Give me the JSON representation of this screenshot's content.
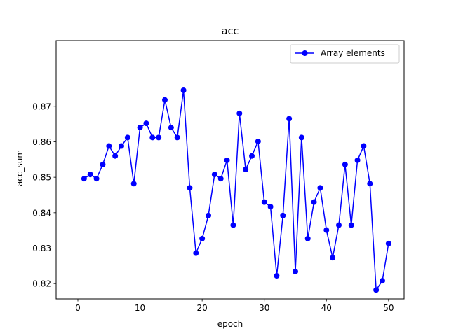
{
  "chart_data": {
    "type": "line",
    "title": "acc",
    "xlabel": "epoch",
    "ylabel": "acc_sum",
    "xlim": [
      -3.5,
      52.5
    ],
    "ylim": [
      0.8157,
      0.8885
    ],
    "xticks": [
      0,
      10,
      20,
      30,
      40,
      50
    ],
    "yticks": [
      0.82,
      0.83,
      0.84,
      0.85,
      0.86,
      0.87
    ],
    "ytick_labels": [
      "0.82",
      "0.83",
      "0.84",
      "0.85",
      "0.86",
      "0.87"
    ],
    "grid": false,
    "legend_position": "upper right",
    "series": [
      {
        "name": "Array elements",
        "color": "#0000ff",
        "marker": "circle",
        "x": [
          1,
          2,
          3,
          4,
          5,
          6,
          7,
          8,
          9,
          10,
          11,
          12,
          13,
          14,
          15,
          16,
          17,
          18,
          19,
          20,
          21,
          22,
          23,
          24,
          25,
          26,
          27,
          28,
          29,
          30,
          31,
          32,
          33,
          34,
          35,
          36,
          37,
          38,
          39,
          40,
          41,
          42,
          43,
          44,
          45,
          46,
          47,
          48,
          49,
          50
        ],
        "values": [
          0.8496,
          0.8508,
          0.8496,
          0.8536,
          0.8588,
          0.856,
          0.8588,
          0.8612,
          0.8482,
          0.864,
          0.8652,
          0.8612,
          0.8612,
          0.8718,
          0.864,
          0.8612,
          0.8745,
          0.847,
          0.8286,
          0.8327,
          0.8392,
          0.8508,
          0.8496,
          0.8548,
          0.8365,
          0.868,
          0.8522,
          0.856,
          0.8601,
          0.843,
          0.8417,
          0.8222,
          0.8392,
          0.8665,
          0.8234,
          0.8612,
          0.8327,
          0.843,
          0.847,
          0.8351,
          0.8273,
          0.8365,
          0.8536,
          0.8365,
          0.8548,
          0.8588,
          0.8482,
          0.8182,
          0.8208,
          0.8313
        ]
      }
    ]
  }
}
